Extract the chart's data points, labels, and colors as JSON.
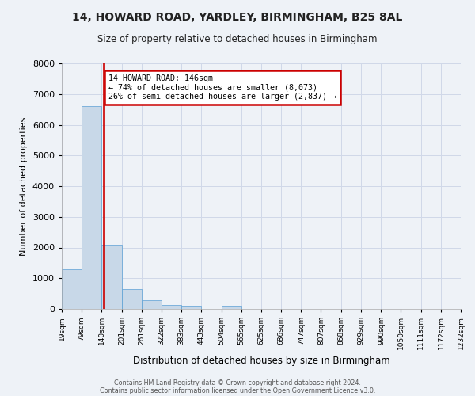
{
  "title_line1": "14, HOWARD ROAD, YARDLEY, BIRMINGHAM, B25 8AL",
  "title_line2": "Size of property relative to detached houses in Birmingham",
  "xlabel": "Distribution of detached houses by size in Birmingham",
  "ylabel": "Number of detached properties",
  "bin_edges": [
    19,
    79,
    140,
    201,
    261,
    322,
    383,
    443,
    504,
    565,
    625,
    686,
    747,
    807,
    868,
    929,
    990,
    1050,
    1111,
    1172,
    1232
  ],
  "bin_labels": [
    "19sqm",
    "79sqm",
    "140sqm",
    "201sqm",
    "261sqm",
    "322sqm",
    "383sqm",
    "443sqm",
    "504sqm",
    "565sqm",
    "625sqm",
    "686sqm",
    "747sqm",
    "807sqm",
    "868sqm",
    "929sqm",
    "990sqm",
    "1050sqm",
    "1111sqm",
    "1172sqm",
    "1232sqm"
  ],
  "counts": [
    1300,
    6600,
    2080,
    650,
    290,
    130,
    100,
    0,
    100,
    0,
    0,
    0,
    0,
    0,
    0,
    0,
    0,
    0,
    0,
    0
  ],
  "bar_color": "#c8d8e8",
  "bar_edgecolor": "#5a9fd4",
  "property_line_x": 146,
  "property_line_color": "#cc0000",
  "annotation_text": "14 HOWARD ROAD: 146sqm\n← 74% of detached houses are smaller (8,073)\n26% of semi-detached houses are larger (2,837) →",
  "annotation_box_edgecolor": "#cc0000",
  "annotation_box_facecolor": "#ffffff",
  "ylim": [
    0,
    8000
  ],
  "grid_color": "#d0d8e8",
  "background_color": "#eef2f7",
  "footer_line1": "Contains HM Land Registry data © Crown copyright and database right 2024.",
  "footer_line2": "Contains public sector information licensed under the Open Government Licence v3.0."
}
